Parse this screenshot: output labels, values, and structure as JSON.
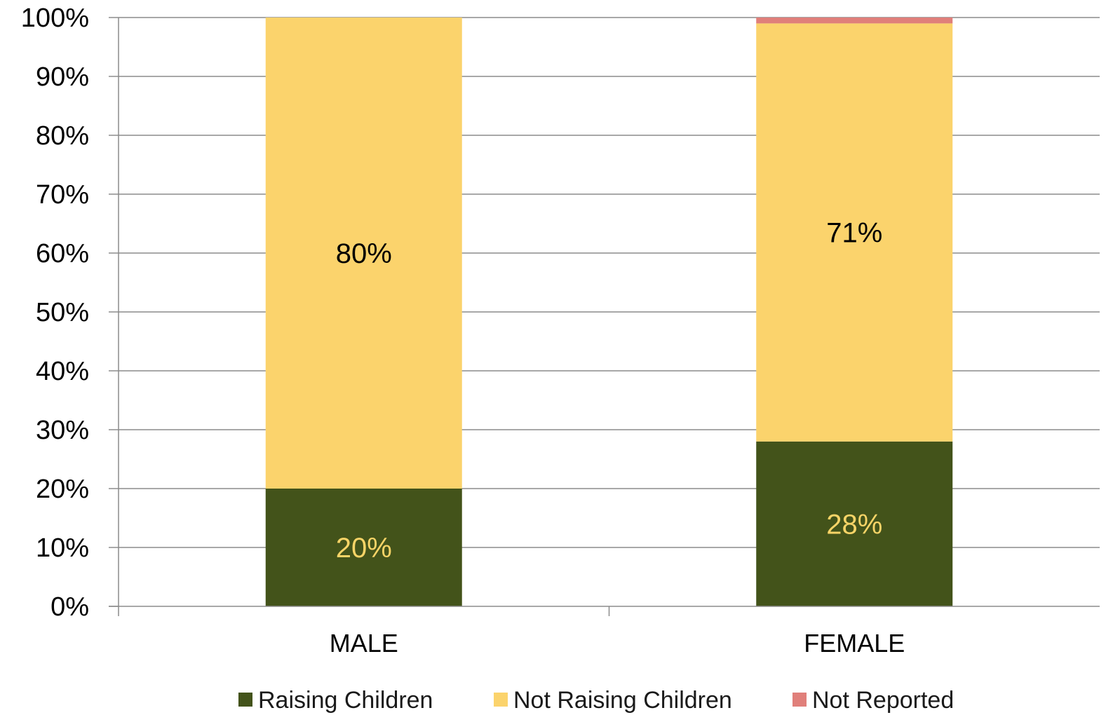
{
  "chart_data": {
    "type": "bar",
    "stacked": true,
    "categories": [
      "MALE",
      "FEMALE"
    ],
    "series": [
      {
        "name": "Raising Children",
        "values": [
          20,
          28
        ],
        "labels": [
          "20%",
          "28%"
        ],
        "color": "#43531a",
        "label_color": "#f8d467"
      },
      {
        "name": "Not Raising Children",
        "values": [
          80,
          71
        ],
        "labels": [
          "80%",
          "71%"
        ],
        "color": "#fbd36c",
        "label_color": "#000000"
      },
      {
        "name": "Not Reported",
        "values": [
          0,
          1
        ],
        "labels": [
          "",
          ""
        ],
        "color": "#e07f7a",
        "label_color": "#000000"
      }
    ],
    "yticks": [
      0,
      10,
      20,
      30,
      40,
      50,
      60,
      70,
      80,
      90,
      100
    ],
    "ytick_labels": [
      "0%",
      "10%",
      "20%",
      "30%",
      "40%",
      "50%",
      "60%",
      "70%",
      "80%",
      "90%",
      "100%"
    ],
    "ylim": [
      0,
      100
    ],
    "grid": true,
    "legend": "bottom",
    "title": "",
    "xlabel": "",
    "ylabel": ""
  }
}
